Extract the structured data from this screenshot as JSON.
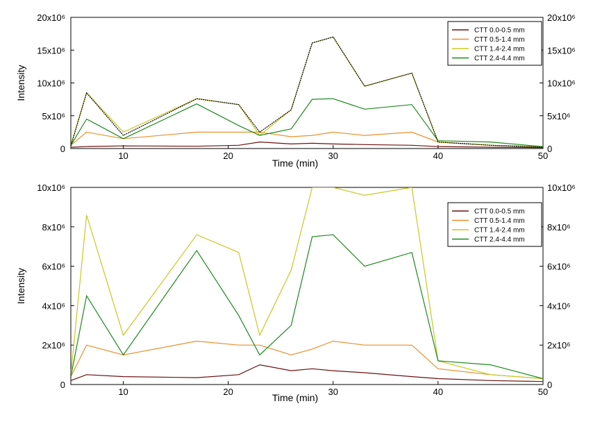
{
  "chart_data": [
    {
      "type": "line",
      "xlabel": "Time (min)",
      "ylabel": "Intensity",
      "xlim": [
        5,
        50
      ],
      "ylim": [
        0,
        20000000
      ],
      "x_ticks": [
        "10",
        "20",
        "30",
        "40",
        "50"
      ],
      "y_ticks_left": [
        "0",
        "5x10⁶",
        "10x10⁶",
        "15x10⁶",
        "20x10⁶"
      ],
      "y_ticks_right": [
        "0",
        "5x10⁶",
        "10x10⁶",
        "15x10⁶",
        "20x10⁶"
      ],
      "legend_position": "top-right",
      "series": [
        {
          "name": "CTT 0.0-0.5 mm",
          "color": "#6b1010",
          "x": [
            5.0,
            6.5,
            10.0,
            17.0,
            21.0,
            23.0,
            26.0,
            28.0,
            30.0,
            33.0,
            37.5,
            40.0,
            45.0,
            50.0
          ],
          "values": [
            200000,
            300000,
            400000,
            350000,
            500000,
            1000000,
            700000,
            800000,
            700000,
            600000,
            500000,
            300000,
            200000,
            150000
          ]
        },
        {
          "name": "CTT 0.5-1.4 mm",
          "color": "#e8902a",
          "x": [
            5.0,
            6.5,
            10.0,
            17.0,
            21.0,
            23.0,
            26.0,
            28.0,
            30.0,
            33.0,
            37.5,
            40.0,
            45.0,
            50.0
          ],
          "values": [
            500000,
            2500000,
            1500000,
            2500000,
            2500000,
            2500000,
            1800000,
            2000000,
            2500000,
            2000000,
            2500000,
            1000000,
            500000,
            300000
          ]
        },
        {
          "name": "CTT 1.4-2.4 mm",
          "color": "#c8c81e",
          "x": [
            5.0,
            6.5,
            10.0,
            17.0,
            21.0,
            23.0,
            26.0,
            28.0,
            30.0,
            33.0,
            37.5,
            40.0,
            45.0,
            50.0
          ],
          "values": [
            500000,
            8500000,
            2500000,
            7600000,
            6700000,
            2000000,
            5900000,
            16100000,
            17000000,
            9500000,
            11500000,
            1000000,
            500000,
            300000
          ]
        },
        {
          "name": "CTT 2.4-4.4 mm",
          "color": "#1a8a1a",
          "x": [
            5.0,
            6.5,
            10.0,
            17.0,
            21.0,
            23.0,
            26.0,
            28.0,
            30.0,
            33.0,
            37.5,
            40.0,
            45.0,
            50.0
          ],
          "values": [
            500000,
            4500000,
            1500000,
            6800000,
            3500000,
            2000000,
            3000000,
            7500000,
            7600000,
            6000000,
            6700000,
            1200000,
            1000000,
            300000
          ]
        },
        {
          "x": [
            5.0,
            6.5,
            10.0,
            17.0,
            21.0,
            23.0,
            26.0,
            28.0,
            30.0,
            33.0,
            37.5,
            40.0,
            45.0,
            50.0
          ],
          "values": [
            400000,
            8500000,
            2000000,
            7600000,
            6700000,
            2500000,
            5900000,
            16100000,
            17000000,
            9500000,
            11500000,
            1000000,
            500000,
            200000
          ],
          "color": "#000000"
        }
      ]
    },
    {
      "type": "line",
      "xlabel": "Time (min)",
      "ylabel": "Intensity",
      "xlim": [
        5,
        50
      ],
      "ylim": [
        0,
        10000000
      ],
      "x_ticks": [
        "10",
        "20",
        "30",
        "40",
        "50"
      ],
      "y_ticks_left": [
        "0",
        "2x10⁶",
        "4x10⁶",
        "6x10⁶",
        "8x10⁶",
        "10x10⁶"
      ],
      "y_ticks_right": [
        "0",
        "2x10⁶",
        "4x10⁶",
        "6x10⁶",
        "8x10⁶",
        "10x10⁶"
      ],
      "legend_position": "top-right",
      "series": [
        {
          "name": "CTT 0.0-0.5 mm",
          "color": "#6b1010",
          "x": [
            5.0,
            6.5,
            10.0,
            17.0,
            21.0,
            23.0,
            26.0,
            28.0,
            30.0,
            33.0,
            37.5,
            40.0,
            45.0,
            50.0
          ],
          "values": [
            200000,
            500000,
            400000,
            350000,
            500000,
            1000000,
            700000,
            800000,
            700000,
            600000,
            400000,
            300000,
            200000,
            150000
          ]
        },
        {
          "name": "CTT 0.5-1.4 mm",
          "color": "#e8902a",
          "x": [
            5.0,
            6.5,
            10.0,
            17.0,
            21.0,
            23.0,
            26.0,
            28.0,
            30.0,
            33.0,
            37.5,
            40.0,
            45.0,
            50.0
          ],
          "values": [
            400000,
            2000000,
            1500000,
            2200000,
            2000000,
            2000000,
            1500000,
            1800000,
            2200000,
            2000000,
            2000000,
            800000,
            500000,
            300000
          ]
        },
        {
          "name": "CTT 1.4-2.4 mm",
          "color": "#c8c81e",
          "x": [
            5.0,
            6.5,
            10.0,
            17.0,
            21.0,
            23.0,
            26.0,
            28.0,
            30.0,
            33.0,
            37.5,
            40.0,
            45.0,
            50.0
          ],
          "values": [
            500000,
            8600000,
            2500000,
            7600000,
            6700000,
            2500000,
            5800000,
            10000000,
            10000000,
            9600000,
            10000000,
            1200000,
            500000,
            300000
          ]
        },
        {
          "name": "CTT 2.4-4.4 mm",
          "color": "#1a8a1a",
          "x": [
            5.0,
            6.5,
            10.0,
            17.0,
            21.0,
            23.0,
            26.0,
            28.0,
            30.0,
            33.0,
            37.5,
            40.0,
            45.0,
            50.0
          ],
          "values": [
            400000,
            4500000,
            1500000,
            6800000,
            3500000,
            1500000,
            3000000,
            7500000,
            7600000,
            6000000,
            6700000,
            1200000,
            1000000,
            300000
          ]
        }
      ]
    }
  ]
}
